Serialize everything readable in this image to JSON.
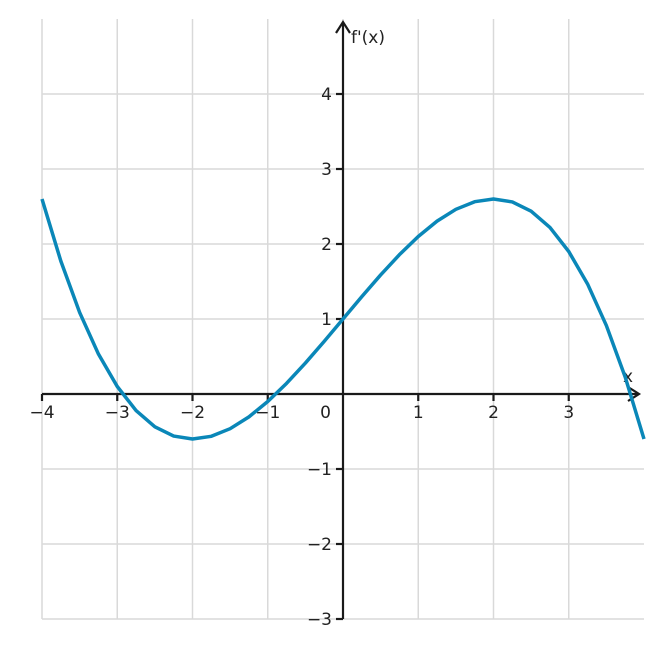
{
  "chart_data": {
    "type": "line",
    "x_label": "x",
    "y_label": "f'(x)",
    "x": [
      -4,
      -3.75,
      -3.5,
      -3.25,
      -3,
      -2.75,
      -2.5,
      -2.25,
      -2,
      -1.75,
      -1.5,
      -1.25,
      -1,
      -0.75,
      -0.5,
      -0.25,
      0,
      0.25,
      0.5,
      0.75,
      1,
      1.25,
      1.5,
      1.75,
      2,
      2.25,
      2.5,
      2.75,
      3,
      3.25,
      3.5,
      3.75,
      4
    ],
    "series": [
      {
        "color": "#0a87b8",
        "values": [
          2.6,
          1.7734,
          1.0875,
          0.5328,
          0.1,
          -0.2203,
          -0.4375,
          -0.5609,
          -0.6,
          -0.5641,
          -0.4625,
          -0.3047,
          -0.1,
          0.1422,
          0.4125,
          0.7016,
          1,
          1.2984,
          1.5875,
          1.8578,
          2.1,
          2.3047,
          2.4625,
          2.5641,
          2.6,
          2.5609,
          2.4375,
          2.2203,
          1.9,
          1.4672,
          0.9125,
          0.2266,
          -0.6
        ]
      }
    ],
    "xlim": [
      -4,
      4
    ],
    "ylim": [
      -3,
      5
    ],
    "xticks": [
      {
        "value": -4,
        "label": "−4"
      },
      {
        "value": -3,
        "label": "−3"
      },
      {
        "value": -2,
        "label": "−2"
      },
      {
        "value": -1,
        "label": "−1"
      },
      0,
      1,
      2,
      3
    ],
    "yticks": [
      {
        "value": -3,
        "label": "−3"
      },
      {
        "value": -2,
        "label": "−2"
      },
      {
        "value": -1,
        "label": "−1"
      },
      1,
      2,
      3,
      4
    ],
    "grid": true
  }
}
